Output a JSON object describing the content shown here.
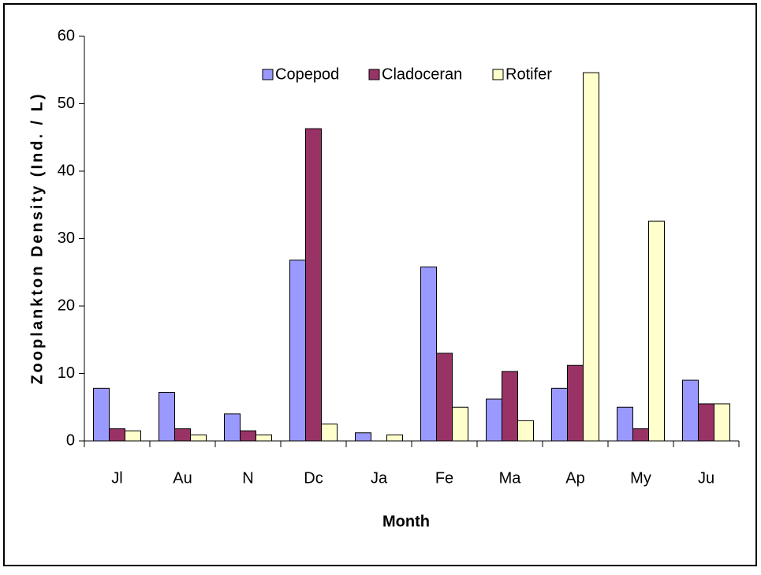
{
  "chart_data": {
    "type": "bar",
    "x_label": "Month",
    "y_label": "Zooplankton Density (Ind. / L)",
    "categories": [
      "Jl",
      "Au",
      "N",
      "Dc",
      "Ja",
      "Fe",
      "Ma",
      "Ap",
      "My",
      "Ju"
    ],
    "series": [
      {
        "name": "Copepod",
        "color": "#9999ff",
        "values": [
          7.8,
          7.2,
          4.0,
          26.8,
          1.2,
          25.8,
          6.2,
          7.8,
          5.0,
          9.0
        ]
      },
      {
        "name": "Cladoceran",
        "color": "#993366",
        "values": [
          1.8,
          1.8,
          1.5,
          46.3,
          0,
          13.0,
          10.3,
          11.2,
          1.8,
          5.5
        ]
      },
      {
        "name": "Rotifer",
        "color": "#ffffcc",
        "values": [
          1.5,
          0.9,
          0.9,
          2.5,
          0.9,
          5.0,
          3.0,
          54.6,
          32.6,
          5.5
        ]
      }
    ],
    "ylim": [
      0,
      60
    ],
    "yticks": [
      0,
      10,
      20,
      30,
      40,
      50,
      60
    ],
    "legend": "top"
  }
}
